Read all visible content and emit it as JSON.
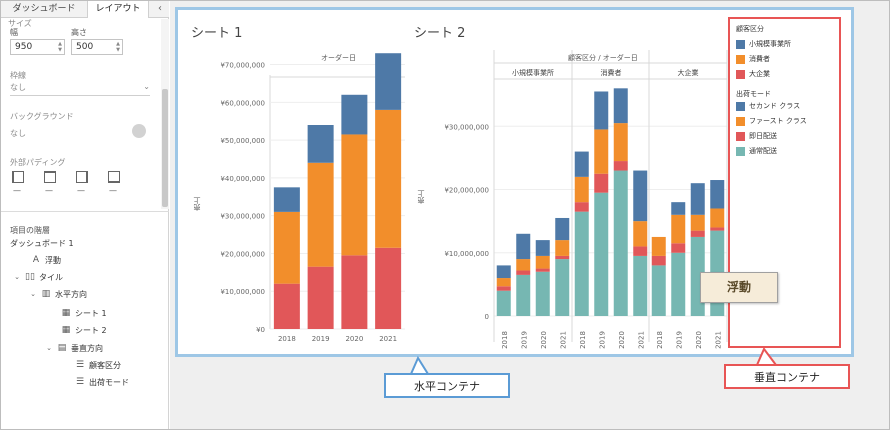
{
  "panel": {
    "tabs": [
      "ダッシュボード",
      "レイアウト"
    ],
    "collapse_icon": "‹",
    "size_section": "サイズ",
    "width_label": "幅",
    "height_label": "高さ",
    "width_value": "950",
    "height_value": "500",
    "border_label": "枠線",
    "border_value": "なし",
    "background_label": "バックグラウンド",
    "background_value": "なし",
    "padding_label": "外部パディング",
    "padding_values": [
      "—",
      "—",
      "—",
      "—"
    ],
    "hierarchy_label": "項目の階層",
    "tree": [
      {
        "label": "ダッシュボード 1",
        "icon": "",
        "chevron": ""
      },
      {
        "label": "浮動",
        "icon": "A",
        "chevron": ""
      },
      {
        "label": "タイル",
        "icon": "▯▯",
        "chevron": "⌄"
      },
      {
        "label": "水平方向",
        "icon": "▥",
        "chevron": "⌄"
      },
      {
        "label": "シート 1",
        "icon": "▦",
        "chevron": ""
      },
      {
        "label": "シート 2",
        "icon": "▦",
        "chevron": ""
      },
      {
        "label": "垂直方向",
        "icon": "▤",
        "chevron": "⌄"
      },
      {
        "label": "顧客区分",
        "icon": "☰",
        "chevron": ""
      },
      {
        "label": "出荷モード",
        "icon": "☰",
        "chevron": ""
      }
    ]
  },
  "sheet1": {
    "title": "シート 1",
    "header": "オーダー日",
    "ylabel": "売上"
  },
  "sheet2": {
    "title": "シート 2",
    "header": "顧客区分 / オーダー日",
    "ylabel": "売上"
  },
  "legend": {
    "segment_title": "顧客区分",
    "segment_items": [
      {
        "label": "小規模事業所",
        "color": "#4e79a7"
      },
      {
        "label": "消費者",
        "color": "#f28e2b"
      },
      {
        "label": "大企業",
        "color": "#e15759"
      }
    ],
    "ship_title": "出荷モード",
    "ship_items": [
      {
        "label": "セカンド クラス",
        "color": "#4e79a7"
      },
      {
        "label": "ファースト クラス",
        "color": "#f28e2b"
      },
      {
        "label": "即日配送",
        "color": "#e15759"
      },
      {
        "label": "通常配送",
        "color": "#76b7b2"
      }
    ]
  },
  "float_label": "浮動",
  "callouts": {
    "horizontal": "水平コンテナ",
    "vertical": "垂直コンテナ"
  },
  "chart_data": [
    {
      "type": "bar",
      "stacked": true,
      "title": "シート 1",
      "xlabel": "オーダー日",
      "ylabel": "売上",
      "categories": [
        "2018",
        "2019",
        "2020",
        "2021"
      ],
      "series": [
        {
          "name": "大企業",
          "color": "#e15759",
          "values": [
            12000000,
            16500000,
            19500000,
            21500000
          ]
        },
        {
          "name": "消費者",
          "color": "#f28e2b",
          "values": [
            19000000,
            27500000,
            32000000,
            36500000
          ]
        },
        {
          "name": "小規模事業所",
          "color": "#4e79a7",
          "values": [
            6500000,
            10000000,
            10500000,
            15000000
          ]
        }
      ],
      "yticks": [
        "¥0",
        "¥10,000,000",
        "¥20,000,000",
        "¥30,000,000",
        "¥40,000,000",
        "¥50,000,000",
        "¥60,000,000",
        "¥70,000,000"
      ],
      "ylim": [
        0,
        72000000
      ],
      "grid": true
    },
    {
      "type": "bar",
      "stacked": true,
      "title": "シート 2",
      "xlabel": "顧客区分 / オーダー日",
      "ylabel": "売上",
      "panels": [
        "小規模事業所",
        "消費者",
        "大企業"
      ],
      "categories": [
        "2018",
        "2019",
        "2020",
        "2021"
      ],
      "series": [
        {
          "name": "通常配送",
          "color": "#76b7b2",
          "values": [
            [
              4000000,
              6500000,
              7000000,
              9000000
            ],
            [
              16500000,
              19500000,
              23000000,
              9500000
            ],
            [
              8000000,
              10000000,
              12500000,
              13500000
            ]
          ]
        },
        {
          "name": "即日配送",
          "color": "#e15759",
          "values": [
            [
              700000,
              700000,
              500000,
              500000
            ],
            [
              1500000,
              3000000,
              1500000,
              1500000
            ],
            [
              1500000,
              1500000,
              1000000,
              500000
            ]
          ]
        },
        {
          "name": "ファースト クラス",
          "color": "#f28e2b",
          "values": [
            [
              1300000,
              1800000,
              2000000,
              2500000
            ],
            [
              4000000,
              7000000,
              6000000,
              4000000
            ],
            [
              3000000,
              4500000,
              2500000,
              3000000
            ]
          ]
        },
        {
          "name": "セカンド クラス",
          "color": "#4e79a7",
          "values": [
            [
              2000000,
              4000000,
              2500000,
              3500000
            ],
            [
              4000000,
              6000000,
              5500000,
              8000000
            ],
            [
              0,
              2000000,
              5000000,
              4500000
            ]
          ]
        }
      ],
      "yticks": [
        "0",
        "¥10,000,000",
        "¥20,000,000",
        "¥30,000,000"
      ],
      "ylim": [
        0,
        37000000
      ],
      "grid": true
    }
  ]
}
